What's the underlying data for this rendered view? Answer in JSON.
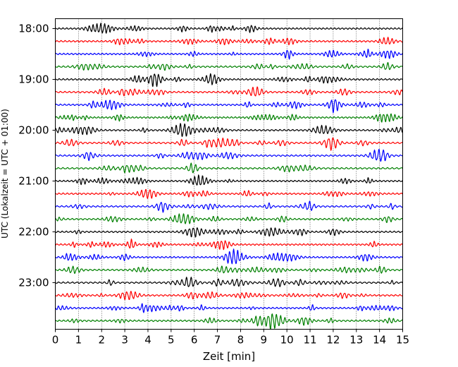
{
  "chart_data": {
    "type": "line",
    "title": "",
    "xlabel": "Zeit  [min]",
    "ylabel": "UTC (Lokalzeit = UTC + 01:00)",
    "xlim": [
      0,
      15
    ],
    "x_ticks": [
      "0",
      "1",
      "2",
      "3",
      "4",
      "5",
      "6",
      "7",
      "8",
      "9",
      "10",
      "11",
      "12",
      "13",
      "14",
      "15"
    ],
    "y_ticks": [
      "18:00",
      "19:00",
      "20:00",
      "21:00",
      "22:00",
      "23:00"
    ],
    "grid": "vertical dotted",
    "trace_interval_minutes": 15,
    "traces": [
      {
        "start": "18:00",
        "color": "#000000"
      },
      {
        "start": "18:15",
        "color": "#ff0000"
      },
      {
        "start": "18:30",
        "color": "#0000ff"
      },
      {
        "start": "18:45",
        "color": "#008000"
      },
      {
        "start": "19:00",
        "color": "#000000"
      },
      {
        "start": "19:15",
        "color": "#ff0000"
      },
      {
        "start": "19:30",
        "color": "#0000ff"
      },
      {
        "start": "19:45",
        "color": "#008000"
      },
      {
        "start": "20:00",
        "color": "#000000"
      },
      {
        "start": "20:15",
        "color": "#ff0000"
      },
      {
        "start": "20:30",
        "color": "#0000ff"
      },
      {
        "start": "20:45",
        "color": "#008000"
      },
      {
        "start": "21:00",
        "color": "#000000"
      },
      {
        "start": "21:15",
        "color": "#ff0000"
      },
      {
        "start": "21:30",
        "color": "#0000ff"
      },
      {
        "start": "21:45",
        "color": "#008000"
      },
      {
        "start": "22:00",
        "color": "#000000"
      },
      {
        "start": "22:15",
        "color": "#ff0000"
      },
      {
        "start": "22:30",
        "color": "#0000ff"
      },
      {
        "start": "22:45",
        "color": "#008000"
      },
      {
        "start": "23:00",
        "color": "#000000"
      },
      {
        "start": "23:15",
        "color": "#ff0000"
      },
      {
        "start": "23:30",
        "color": "#0000ff"
      },
      {
        "start": "23:45",
        "color": "#008000"
      }
    ]
  }
}
